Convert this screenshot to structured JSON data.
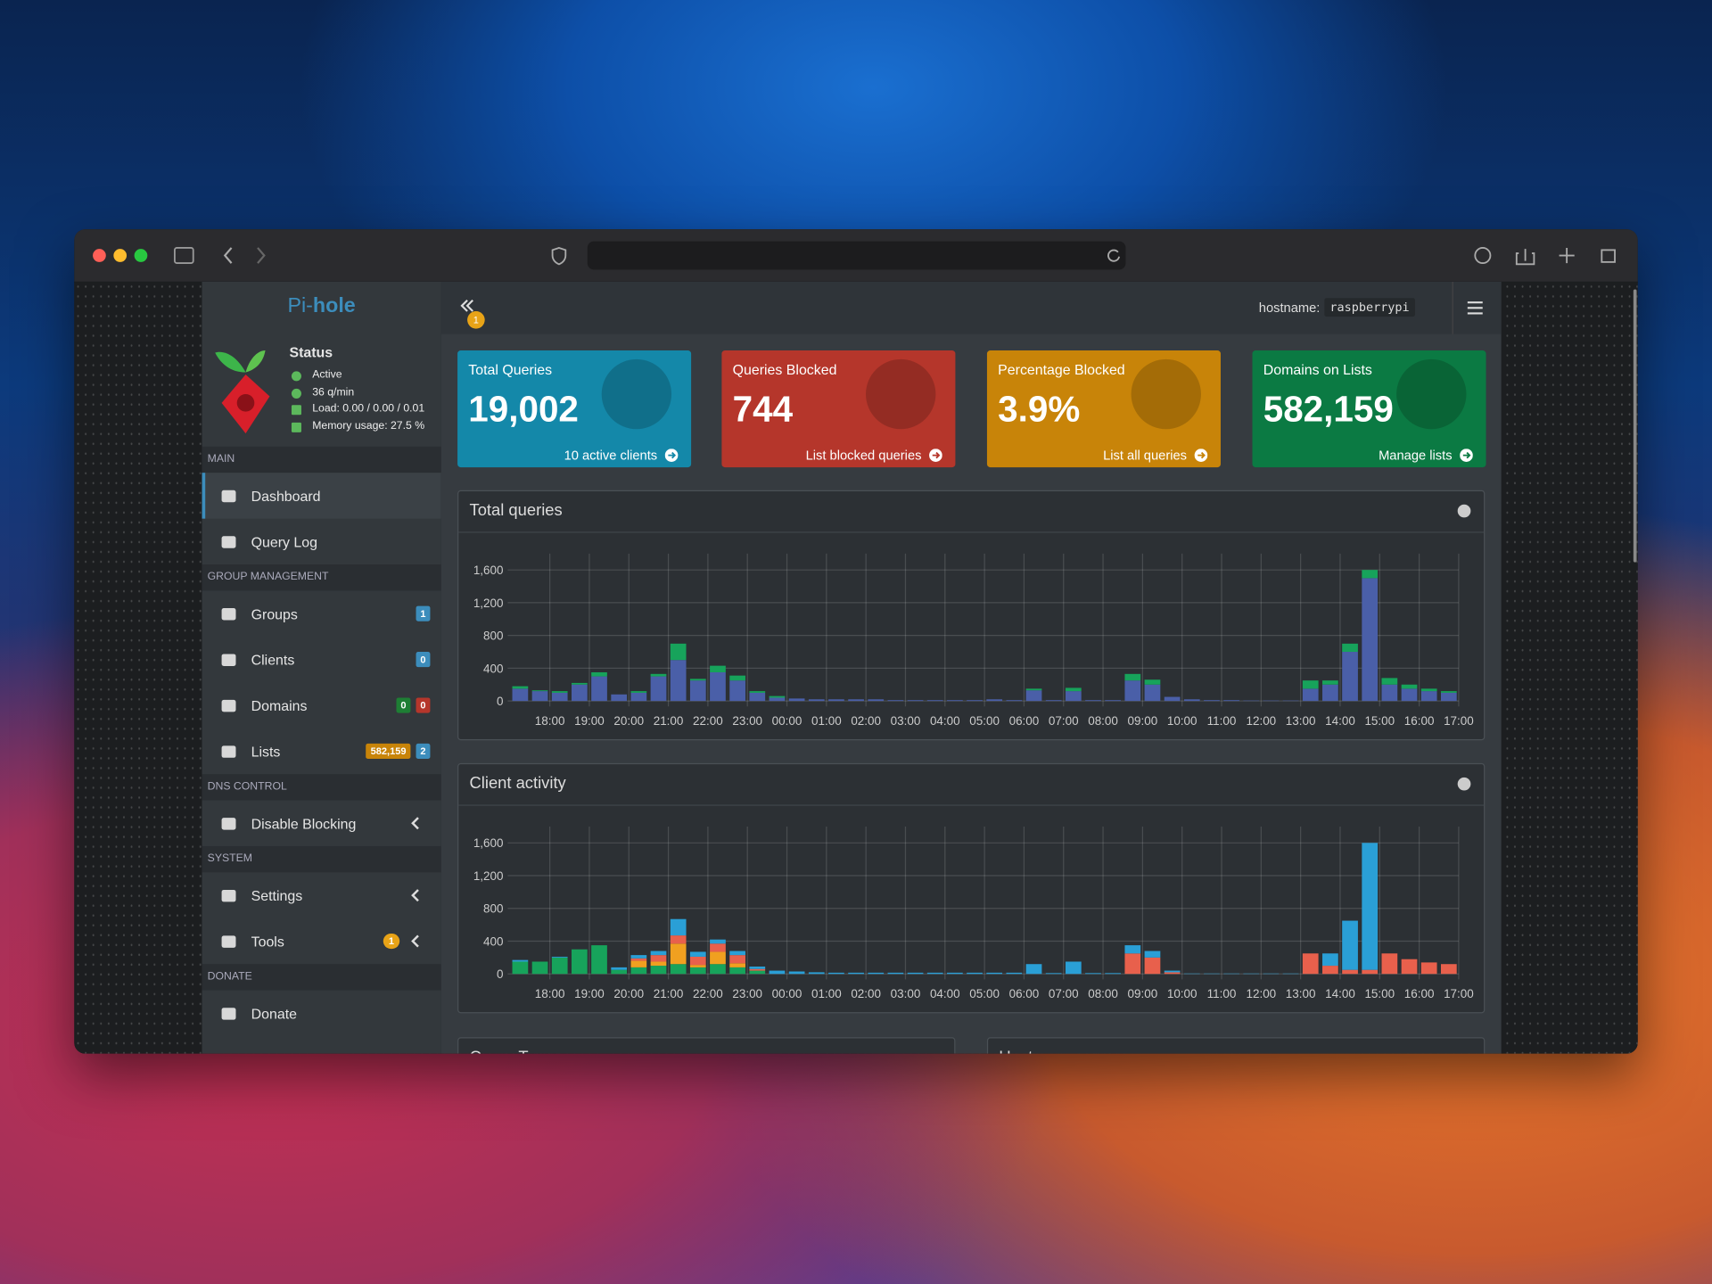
{
  "sidebar": {
    "logo_prefix": "Pi-",
    "logo_suffix": "hole",
    "status": {
      "title": "Status",
      "items": [
        "Active",
        "36 q/min",
        "Load: 0.00 / 0.00 / 0.01",
        "Memory usage: 27.5 %"
      ]
    },
    "nav": [
      {
        "heading": "MAIN",
        "items": [
          {
            "label": "Dashboard",
            "active": true
          },
          {
            "label": "Query Log"
          }
        ]
      },
      {
        "heading": "GROUP MANAGEMENT",
        "items": [
          {
            "label": "Groups",
            "badges": [
              {
                "text": "1",
                "color": "#3c8dbc"
              }
            ]
          },
          {
            "label": "Clients",
            "badges": [
              {
                "text": "0",
                "color": "#3c8dbc"
              }
            ]
          },
          {
            "label": "Domains",
            "badges": [
              {
                "text": "0",
                "color": "#1e7e34"
              },
              {
                "text": "0",
                "color": "#b5362b"
              }
            ]
          },
          {
            "label": "Lists",
            "badges": [
              {
                "text": "582,159",
                "color": "#c88409"
              },
              {
                "text": "2",
                "color": "#3c8dbc"
              }
            ]
          }
        ]
      },
      {
        "heading": "DNS CONTROL",
        "items": [
          {
            "label": "Disable Blocking",
            "submenu": true
          }
        ]
      },
      {
        "heading": "SYSTEM",
        "items": [
          {
            "label": "Settings",
            "submenu": true
          },
          {
            "label": "Tools",
            "submenu": true,
            "badges": [
              {
                "text": "1",
                "color": "#e8a317",
                "round": true
              }
            ]
          }
        ]
      },
      {
        "heading": "DONATE",
        "items": [
          {
            "label": "Donate"
          }
        ]
      }
    ]
  },
  "topbar": {
    "toggle_badge": "1",
    "hostname_label": "hostname:",
    "hostname": "raspberrypi"
  },
  "cards": [
    {
      "title": "Total Queries",
      "value": "19,002",
      "link": "10 active clients",
      "color": "#1488a9"
    },
    {
      "title": "Queries Blocked",
      "value": "744",
      "link": "List blocked queries",
      "color": "#b5362b"
    },
    {
      "title": "Percentage Blocked",
      "value": "3.9%",
      "link": "List all queries",
      "color": "#c88409"
    },
    {
      "title": "Domains on Lists",
      "value": "582,159",
      "link": "Manage lists",
      "color": "#0b7a43"
    }
  ],
  "charts": [
    {
      "type": "bar",
      "title": "Total queries",
      "stacked": true,
      "grid": true,
      "x": [
        17.25,
        17.75,
        18.25,
        18.75,
        19.25,
        19.75,
        20.25,
        20.75,
        21.25,
        21.75,
        22.25,
        22.75,
        23.25,
        23.75,
        24.25,
        24.75,
        25.25,
        25.75,
        26.25,
        26.75,
        27.25,
        27.75,
        28.25,
        28.75,
        29.25,
        29.75,
        30.25,
        30.75,
        31.25,
        31.75,
        32.25,
        32.75,
        33.25,
        33.75,
        34.25,
        34.75,
        35.25,
        35.75,
        36.25,
        36.75,
        37.25,
        37.75,
        38.25,
        38.75,
        39.25,
        39.75,
        40.25,
        40.75
      ],
      "xlim": [
        17.1,
        41.0
      ],
      "xticks": [
        {
          "value": 18,
          "label": "18:00"
        },
        {
          "value": 19,
          "label": "19:00"
        },
        {
          "value": 20,
          "label": "20:00"
        },
        {
          "value": 21,
          "label": "21:00"
        },
        {
          "value": 22,
          "label": "22:00"
        },
        {
          "value": 23,
          "label": "23:00"
        },
        {
          "value": 24,
          "label": "00:00"
        },
        {
          "value": 25,
          "label": "01:00"
        },
        {
          "value": 26,
          "label": "02:00"
        },
        {
          "value": 27,
          "label": "03:00"
        },
        {
          "value": 28,
          "label": "04:00"
        },
        {
          "value": 29,
          "label": "05:00"
        },
        {
          "value": 30,
          "label": "06:00"
        },
        {
          "value": 31,
          "label": "07:00"
        },
        {
          "value": 32,
          "label": "08:00"
        },
        {
          "value": 33,
          "label": "09:00"
        },
        {
          "value": 34,
          "label": "10:00"
        },
        {
          "value": 35,
          "label": "11:00"
        },
        {
          "value": 36,
          "label": "12:00"
        },
        {
          "value": 37,
          "label": "13:00"
        },
        {
          "value": 38,
          "label": "14:00"
        },
        {
          "value": 39,
          "label": "15:00"
        },
        {
          "value": 40,
          "label": "16:00"
        },
        {
          "value": 41,
          "label": "17:00"
        }
      ],
      "ylim": [
        0,
        1800
      ],
      "yticks": [
        0,
        400,
        800,
        {
          "value": 1200,
          "label": "1,200"
        },
        {
          "value": 1600,
          "label": "1,600"
        }
      ],
      "series": [
        {
          "color": "#4a5fa8",
          "values": [
            150,
            120,
            100,
            200,
            300,
            80,
            100,
            300,
            500,
            250,
            350,
            250,
            100,
            40,
            30,
            20,
            20,
            20,
            20,
            10,
            10,
            10,
            10,
            10,
            20,
            10,
            130,
            10,
            120,
            10,
            10,
            250,
            200,
            50,
            20,
            10,
            10,
            5,
            5,
            5,
            150,
            200,
            600,
            1500,
            200,
            150,
            120,
            100
          ]
        },
        {
          "color": "#17a35b",
          "values": [
            30,
            10,
            20,
            20,
            50,
            0,
            20,
            30,
            200,
            20,
            80,
            60,
            20,
            20,
            0,
            0,
            0,
            0,
            0,
            0,
            0,
            0,
            0,
            0,
            0,
            0,
            20,
            0,
            40,
            0,
            0,
            80,
            60,
            0,
            0,
            0,
            0,
            0,
            0,
            0,
            100,
            50,
            100,
            100,
            80,
            50,
            30,
            20
          ]
        }
      ]
    },
    {
      "type": "bar",
      "title": "Client activity",
      "stacked": true,
      "grid": true,
      "x": [
        17.25,
        17.75,
        18.25,
        18.75,
        19.25,
        19.75,
        20.25,
        20.75,
        21.25,
        21.75,
        22.25,
        22.75,
        23.25,
        23.75,
        24.25,
        24.75,
        25.25,
        25.75,
        26.25,
        26.75,
        27.25,
        27.75,
        28.25,
        28.75,
        29.25,
        29.75,
        30.25,
        30.75,
        31.25,
        31.75,
        32.25,
        32.75,
        33.25,
        33.75,
        34.25,
        34.75,
        35.25,
        35.75,
        36.25,
        36.75,
        37.25,
        37.75,
        38.25,
        38.75,
        39.25,
        39.75,
        40.25,
        40.75
      ],
      "xlim": [
        17.1,
        41.0
      ],
      "xticks": [
        {
          "value": 18,
          "label": "18:00"
        },
        {
          "value": 19,
          "label": "19:00"
        },
        {
          "value": 20,
          "label": "20:00"
        },
        {
          "value": 21,
          "label": "21:00"
        },
        {
          "value": 22,
          "label": "22:00"
        },
        {
          "value": 23,
          "label": "23:00"
        },
        {
          "value": 24,
          "label": "00:00"
        },
        {
          "value": 25,
          "label": "01:00"
        },
        {
          "value": 26,
          "label": "02:00"
        },
        {
          "value": 27,
          "label": "03:00"
        },
        {
          "value": 28,
          "label": "04:00"
        },
        {
          "value": 29,
          "label": "05:00"
        },
        {
          "value": 30,
          "label": "06:00"
        },
        {
          "value": 31,
          "label": "07:00"
        },
        {
          "value": 32,
          "label": "08:00"
        },
        {
          "value": 33,
          "label": "09:00"
        },
        {
          "value": 34,
          "label": "10:00"
        },
        {
          "value": 35,
          "label": "11:00"
        },
        {
          "value": 36,
          "label": "12:00"
        },
        {
          "value": 37,
          "label": "13:00"
        },
        {
          "value": 38,
          "label": "14:00"
        },
        {
          "value": 39,
          "label": "15:00"
        },
        {
          "value": 40,
          "label": "16:00"
        },
        {
          "value": 41,
          "label": "17:00"
        }
      ],
      "ylim": [
        0,
        1800
      ],
      "yticks": [
        0,
        400,
        800,
        {
          "value": 1200,
          "label": "1,200"
        },
        {
          "value": 1600,
          "label": "1,600"
        }
      ],
      "series": [
        {
          "color": "#17a35b",
          "values": [
            150,
            150,
            200,
            300,
            350,
            50,
            80,
            100,
            120,
            80,
            120,
            80,
            40,
            0,
            0,
            0,
            0,
            0,
            0,
            0,
            0,
            0,
            0,
            0,
            0,
            0,
            0,
            0,
            0,
            0,
            0,
            0,
            0,
            0,
            0,
            0,
            0,
            0,
            0,
            0,
            0,
            0,
            0,
            0,
            0,
            0,
            0,
            0
          ]
        },
        {
          "color": "#f0a020",
          "values": [
            0,
            0,
            0,
            0,
            0,
            0,
            80,
            50,
            250,
            30,
            150,
            50,
            0,
            0,
            0,
            0,
            0,
            0,
            0,
            0,
            0,
            0,
            0,
            0,
            0,
            0,
            0,
            0,
            0,
            0,
            0,
            0,
            0,
            0,
            0,
            0,
            0,
            0,
            0,
            0,
            0,
            0,
            0,
            0,
            0,
            0,
            0,
            0
          ]
        },
        {
          "color": "#e8604c",
          "values": [
            0,
            0,
            0,
            0,
            0,
            0,
            30,
            80,
            100,
            100,
            100,
            100,
            20,
            0,
            0,
            0,
            0,
            0,
            0,
            0,
            0,
            0,
            0,
            0,
            0,
            0,
            0,
            0,
            0,
            0,
            0,
            250,
            200,
            20,
            0,
            0,
            0,
            0,
            0,
            0,
            250,
            100,
            50,
            50,
            250,
            180,
            140,
            120
          ]
        },
        {
          "color": "#2a9fd6",
          "values": [
            20,
            0,
            10,
            0,
            0,
            30,
            40,
            50,
            200,
            60,
            50,
            50,
            30,
            40,
            30,
            20,
            15,
            15,
            15,
            15,
            15,
            15,
            15,
            15,
            15,
            15,
            120,
            10,
            150,
            10,
            10,
            100,
            80,
            20,
            5,
            5,
            5,
            5,
            5,
            5,
            0,
            150,
            600,
            1550,
            0,
            0,
            0,
            0
          ]
        }
      ]
    }
  ],
  "panels_below": [
    "Query Types",
    "Upstream servers"
  ]
}
